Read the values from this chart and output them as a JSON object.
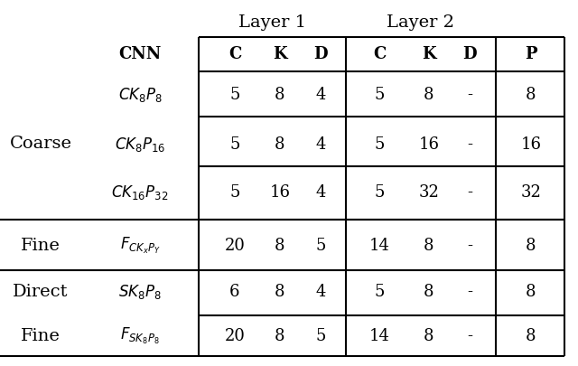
{
  "layer1_header": "Layer 1",
  "layer2_header": "Layer 2",
  "col_header_bold": [
    "C",
    "K",
    "D",
    "C",
    "K",
    "D",
    "P"
  ],
  "cnn_header": "CNN",
  "data_rows": [
    [
      "5",
      "8",
      "4",
      "5",
      "8",
      "-",
      "8"
    ],
    [
      "5",
      "8",
      "4",
      "5",
      "16",
      "-",
      "16"
    ],
    [
      "5",
      "16",
      "4",
      "5",
      "32",
      "-",
      "32"
    ],
    [
      "20",
      "8",
      "5",
      "14",
      "8",
      "-",
      "8"
    ],
    [
      "6",
      "8",
      "4",
      "5",
      "8",
      "-",
      "8"
    ],
    [
      "20",
      "8",
      "5",
      "14",
      "8",
      "-",
      "8"
    ]
  ],
  "cnn_math": [
    "$CK_8P_8$",
    "$CK_8P_{16}$",
    "$CK_{16}P_{32}$",
    "$F_{CK_xP_Y}$",
    "$SK_8P_8$",
    "$F_{SK_8P_8}$"
  ],
  "row_group_labels": [
    "Coarse",
    "Fine",
    "Direct",
    "Fine"
  ],
  "bg_color": "#ffffff",
  "line_color": "#000000",
  "text_color": "#000000",
  "fig_width": 6.4,
  "fig_height": 4.06,
  "dpi": 100
}
